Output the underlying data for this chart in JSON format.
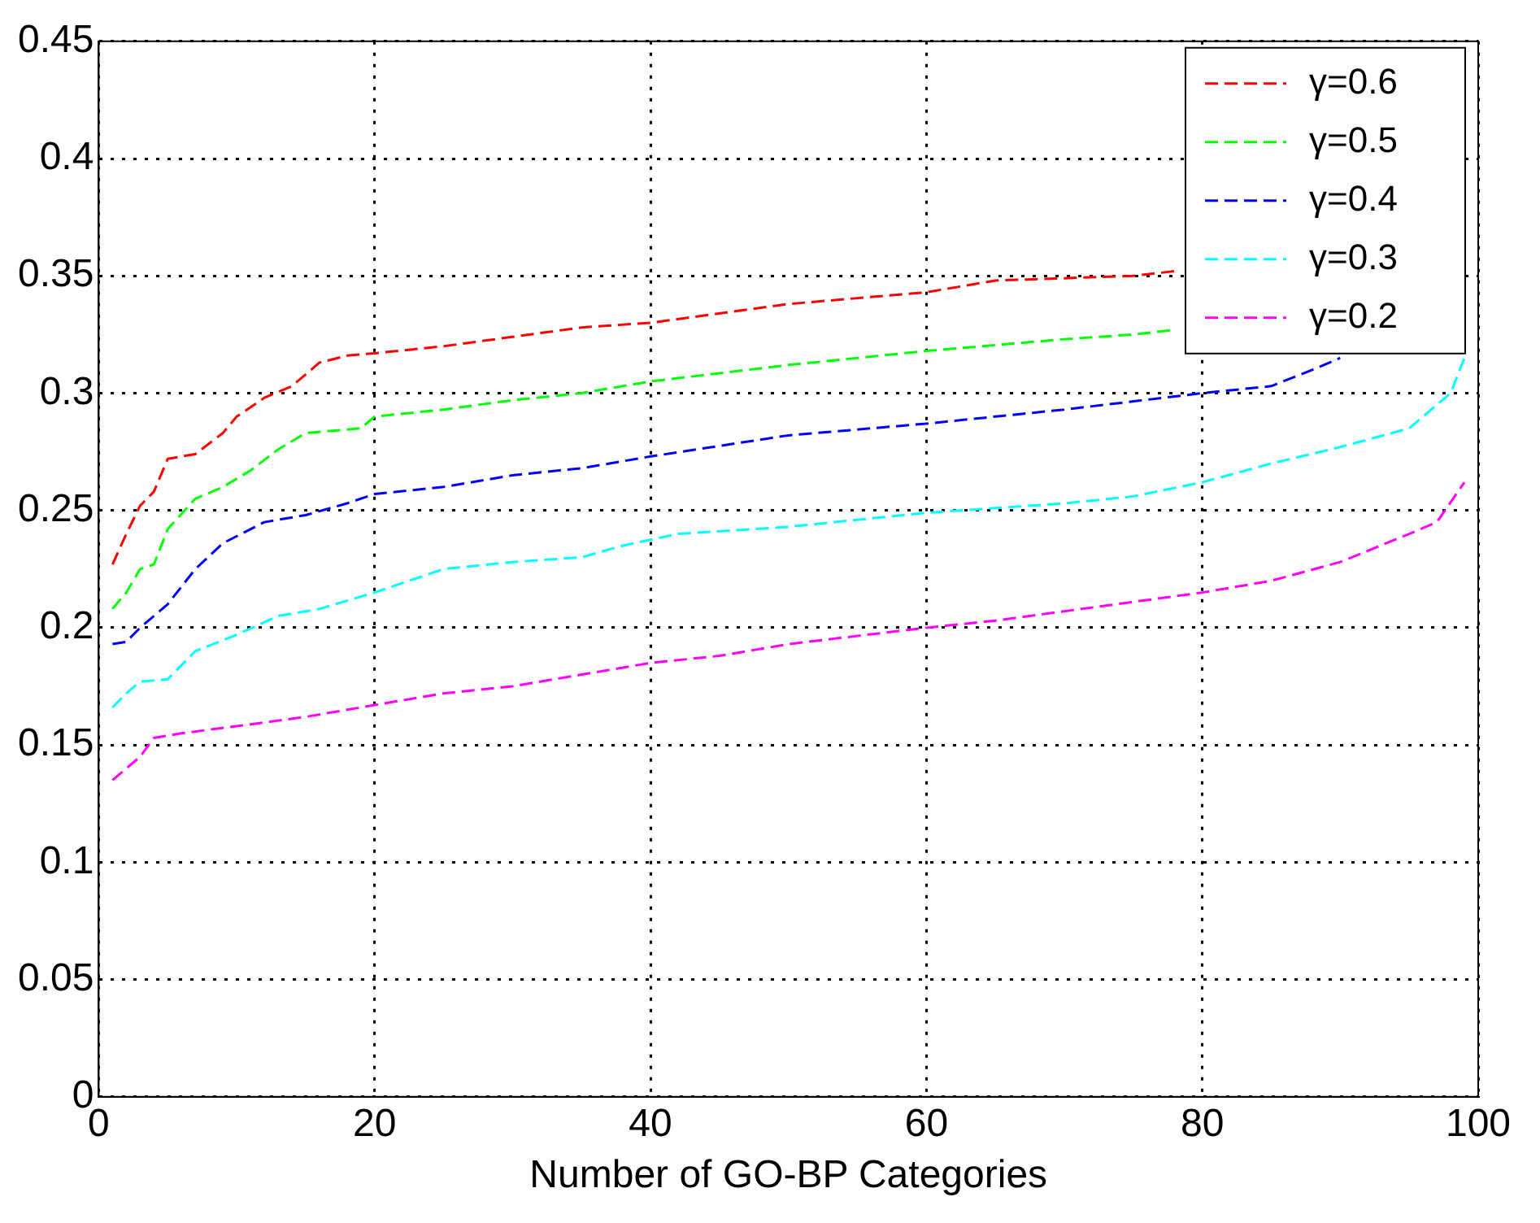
{
  "chart_data": {
    "type": "line",
    "xlabel": "Number of GO-BP Categories",
    "xlim": [
      0,
      100
    ],
    "xticks": [
      0,
      20,
      40,
      60,
      80,
      100
    ],
    "ylim": [
      0,
      0.45
    ],
    "yticks": [
      0,
      0.05,
      0.1,
      0.15,
      0.2,
      0.25,
      0.3,
      0.35,
      0.4,
      0.45
    ],
    "grid": true,
    "legend": "top right",
    "marker": "none",
    "line_style": "dashed",
    "series": [
      {
        "name": "γ=0.6",
        "color": "#ff0000",
        "x": [
          1,
          2,
          3,
          4,
          5,
          7,
          9,
          10,
          12,
          14,
          16,
          18,
          20,
          25,
          30,
          35,
          40,
          50,
          60,
          65,
          70,
          75,
          78
        ],
        "values": [
          0.227,
          0.24,
          0.252,
          0.258,
          0.272,
          0.274,
          0.283,
          0.29,
          0.298,
          0.303,
          0.313,
          0.316,
          0.317,
          0.32,
          0.324,
          0.328,
          0.33,
          0.338,
          0.343,
          0.348,
          0.349,
          0.35,
          0.352
        ]
      },
      {
        "name": "γ=0.5",
        "color": "#00ff00",
        "x": [
          1,
          2,
          3,
          4,
          5,
          7,
          9,
          11,
          13,
          15,
          19,
          20,
          25,
          30,
          35,
          40,
          50,
          60,
          70,
          75,
          78
        ],
        "values": [
          0.208,
          0.215,
          0.225,
          0.227,
          0.242,
          0.255,
          0.26,
          0.267,
          0.276,
          0.283,
          0.285,
          0.29,
          0.293,
          0.297,
          0.3,
          0.305,
          0.312,
          0.318,
          0.323,
          0.325,
          0.327
        ]
      },
      {
        "name": "γ=0.4",
        "color": "#0000ff",
        "x": [
          1,
          2,
          3,
          5,
          7,
          9,
          12,
          15,
          18,
          20,
          25,
          30,
          35,
          40,
          50,
          60,
          70,
          80,
          85,
          88,
          90
        ],
        "values": [
          0.193,
          0.194,
          0.2,
          0.21,
          0.225,
          0.236,
          0.245,
          0.248,
          0.253,
          0.257,
          0.26,
          0.265,
          0.268,
          0.273,
          0.282,
          0.287,
          0.293,
          0.3,
          0.303,
          0.31,
          0.315
        ]
      },
      {
        "name": "γ=0.3",
        "color": "#00ffff",
        "x": [
          1,
          2,
          3,
          5,
          7,
          10,
          13,
          16,
          20,
          25,
          30,
          35,
          38,
          42,
          50,
          60,
          70,
          75,
          80,
          85,
          90,
          95,
          98,
          99
        ],
        "values": [
          0.166,
          0.172,
          0.177,
          0.178,
          0.19,
          0.197,
          0.205,
          0.208,
          0.215,
          0.225,
          0.228,
          0.23,
          0.235,
          0.24,
          0.243,
          0.249,
          0.253,
          0.256,
          0.262,
          0.27,
          0.277,
          0.285,
          0.3,
          0.315
        ]
      },
      {
        "name": "γ=0.2",
        "color": "#ff00ff",
        "x": [
          1,
          2,
          3,
          4,
          6,
          10,
          15,
          20,
          25,
          30,
          35,
          40,
          45,
          50,
          60,
          65,
          70,
          80,
          85,
          90,
          95,
          97,
          99
        ],
        "values": [
          0.135,
          0.14,
          0.145,
          0.153,
          0.155,
          0.158,
          0.162,
          0.167,
          0.172,
          0.175,
          0.18,
          0.185,
          0.188,
          0.193,
          0.2,
          0.203,
          0.207,
          0.215,
          0.22,
          0.228,
          0.24,
          0.245,
          0.262
        ]
      }
    ]
  }
}
